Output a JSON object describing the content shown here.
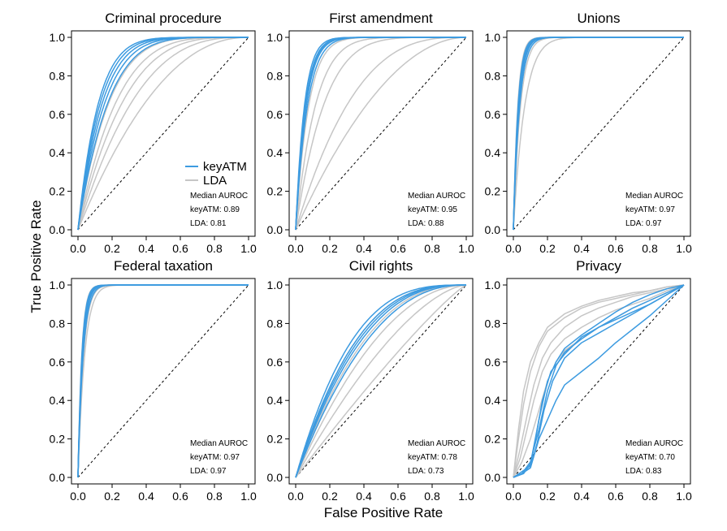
{
  "figure": {
    "xlabel": "False Positive Rate",
    "ylabel": "True Positive Rate"
  },
  "legend": {
    "entries": [
      {
        "label": "keyATM",
        "color": "#3d9be0"
      },
      {
        "label": "LDA",
        "color": "#c6c6c6"
      }
    ]
  },
  "colors": {
    "keyatm": "#3d9be0",
    "lda": "#c6c6c6",
    "diagonal": "#000000"
  },
  "chart_data": [
    {
      "type": "line",
      "title": "Criminal procedure",
      "xlim": [
        0,
        1
      ],
      "ylim": [
        0,
        1
      ],
      "ticks": [
        "0.0",
        "0.2",
        "0.4",
        "0.6",
        "0.8",
        "1.0"
      ],
      "note_title": "Median AUROC",
      "keyatm_auroc": "keyATM: 0.89",
      "lda_auroc": "LDA: 0.81",
      "keyatm_shape": 7,
      "lda_shape": 3.6,
      "keyatm_spread": [
        0.8,
        0.9,
        1.0,
        1.1,
        1.2
      ],
      "lda_spread": [
        0.6,
        0.8,
        1.0,
        1.2,
        1.5
      ]
    },
    {
      "type": "line",
      "title": "First amendment",
      "xlim": [
        0,
        1
      ],
      "ylim": [
        0,
        1
      ],
      "ticks": [
        "0.0",
        "0.2",
        "0.4",
        "0.6",
        "0.8",
        "1.0"
      ],
      "note_title": "Median AUROC",
      "keyatm_auroc": "keyATM: 0.95",
      "lda_auroc": "LDA: 0.88",
      "keyatm_shape": 17,
      "lda_shape": 6.5,
      "keyatm_spread": [
        0.85,
        0.95,
        1.0,
        1.05,
        1.15
      ],
      "lda_spread": [
        0.3,
        0.45,
        0.9,
        1.3,
        2.0
      ]
    },
    {
      "type": "line",
      "title": "Unions",
      "xlim": [
        0,
        1
      ],
      "ylim": [
        0,
        1
      ],
      "ticks": [
        "0.0",
        "0.2",
        "0.4",
        "0.6",
        "0.8",
        "1.0"
      ],
      "note_title": "Median AUROC",
      "keyatm_auroc": "keyATM: 0.97",
      "lda_auroc": "LDA: 0.97",
      "keyatm_shape": 32,
      "lda_shape": 30,
      "keyatm_spread": [
        0.85,
        0.95,
        1.0,
        1.05,
        1.15
      ],
      "lda_spread": [
        0.5,
        0.8,
        1.0,
        1.2,
        1.3
      ]
    },
    {
      "type": "line",
      "title": "Federal taxation",
      "xlim": [
        0,
        1
      ],
      "ylim": [
        0,
        1
      ],
      "ticks": [
        "0.0",
        "0.2",
        "0.4",
        "0.6",
        "0.8",
        "1.0"
      ],
      "note_title": "Median AUROC",
      "keyatm_auroc": "keyATM: 0.97",
      "lda_auroc": "LDA: 0.97",
      "keyatm_shape": 38,
      "lda_shape": 36,
      "keyatm_spread": [
        0.85,
        0.95,
        1.0,
        1.05,
        1.15
      ],
      "lda_spread": [
        0.7,
        0.85,
        1.0,
        1.1,
        1.25
      ]
    },
    {
      "type": "line",
      "title": "Civil rights",
      "xlim": [
        0,
        1
      ],
      "ylim": [
        0,
        1
      ],
      "ticks": [
        "0.0",
        "0.2",
        "0.4",
        "0.6",
        "0.8",
        "1.0"
      ],
      "note_title": "Median AUROC",
      "keyatm_auroc": "keyATM: 0.78",
      "lda_auroc": "LDA: 0.73",
      "keyatm_shape": 2.7,
      "lda_shape": 2.1,
      "keyatm_spread": [
        0.85,
        0.95,
        1.0,
        1.05,
        1.15
      ],
      "lda_spread": [
        0.55,
        0.75,
        0.95,
        1.15,
        1.35
      ]
    },
    {
      "type": "line",
      "title": "Privacy",
      "xlim": [
        0,
        1
      ],
      "ylim": [
        0,
        1
      ],
      "ticks": [
        "0.0",
        "0.2",
        "0.4",
        "0.6",
        "0.8",
        "1.0"
      ],
      "note_title": "Median AUROC",
      "keyatm_auroc": "keyATM: 0.70",
      "lda_auroc": "LDA: 0.83",
      "keyatm_curves": [
        [
          [
            0,
            0
          ],
          [
            0.05,
            0.02
          ],
          [
            0.1,
            0.05
          ],
          [
            0.14,
            0.18
          ],
          [
            0.18,
            0.35
          ],
          [
            0.23,
            0.5
          ],
          [
            0.3,
            0.62
          ],
          [
            0.4,
            0.7
          ],
          [
            0.5,
            0.75
          ],
          [
            0.6,
            0.8
          ],
          [
            0.7,
            0.85
          ],
          [
            0.8,
            0.9
          ],
          [
            0.9,
            0.95
          ],
          [
            1,
            1
          ]
        ],
        [
          [
            0,
            0
          ],
          [
            0.05,
            0.02
          ],
          [
            0.1,
            0.08
          ],
          [
            0.15,
            0.25
          ],
          [
            0.2,
            0.45
          ],
          [
            0.25,
            0.58
          ],
          [
            0.3,
            0.65
          ],
          [
            0.4,
            0.72
          ],
          [
            0.5,
            0.78
          ],
          [
            0.6,
            0.83
          ],
          [
            0.7,
            0.88
          ],
          [
            0.8,
            0.92
          ],
          [
            0.9,
            0.96
          ],
          [
            1,
            1
          ]
        ],
        [
          [
            0,
            0
          ],
          [
            0.05,
            0.03
          ],
          [
            0.1,
            0.06
          ],
          [
            0.13,
            0.2
          ],
          [
            0.17,
            0.4
          ],
          [
            0.22,
            0.55
          ],
          [
            0.3,
            0.64
          ],
          [
            0.4,
            0.73
          ],
          [
            0.5,
            0.78
          ],
          [
            0.6,
            0.82
          ],
          [
            0.7,
            0.86
          ],
          [
            0.8,
            0.9
          ],
          [
            0.9,
            0.95
          ],
          [
            1,
            1
          ]
        ],
        [
          [
            0,
            0
          ],
          [
            0.05,
            0.02
          ],
          [
            0.1,
            0.05
          ],
          [
            0.15,
            0.2
          ],
          [
            0.2,
            0.3
          ],
          [
            0.25,
            0.4
          ],
          [
            0.3,
            0.48
          ],
          [
            0.4,
            0.55
          ],
          [
            0.5,
            0.62
          ],
          [
            0.6,
            0.7
          ],
          [
            0.7,
            0.77
          ],
          [
            0.8,
            0.84
          ],
          [
            0.9,
            0.92
          ],
          [
            1,
            1
          ]
        ],
        [
          [
            0,
            0
          ],
          [
            0.06,
            0.02
          ],
          [
            0.1,
            0.07
          ],
          [
            0.15,
            0.3
          ],
          [
            0.2,
            0.5
          ],
          [
            0.25,
            0.6
          ],
          [
            0.3,
            0.67
          ],
          [
            0.4,
            0.74
          ],
          [
            0.5,
            0.8
          ],
          [
            0.6,
            0.86
          ],
          [
            0.7,
            0.91
          ],
          [
            0.8,
            0.95
          ],
          [
            0.9,
            0.98
          ],
          [
            1,
            1
          ]
        ]
      ],
      "lda_curves": [
        [
          [
            0,
            0
          ],
          [
            0.03,
            0.2
          ],
          [
            0.06,
            0.38
          ],
          [
            0.1,
            0.55
          ],
          [
            0.15,
            0.68
          ],
          [
            0.2,
            0.76
          ],
          [
            0.3,
            0.83
          ],
          [
            0.4,
            0.88
          ],
          [
            0.5,
            0.91
          ],
          [
            0.6,
            0.93
          ],
          [
            0.7,
            0.95
          ],
          [
            0.8,
            0.97
          ],
          [
            0.9,
            0.99
          ],
          [
            1,
            1
          ]
        ],
        [
          [
            0,
            0
          ],
          [
            0.04,
            0.15
          ],
          [
            0.08,
            0.32
          ],
          [
            0.12,
            0.48
          ],
          [
            0.17,
            0.62
          ],
          [
            0.22,
            0.7
          ],
          [
            0.3,
            0.78
          ],
          [
            0.4,
            0.84
          ],
          [
            0.5,
            0.88
          ],
          [
            0.6,
            0.91
          ],
          [
            0.7,
            0.94
          ],
          [
            0.8,
            0.96
          ],
          [
            0.9,
            0.98
          ],
          [
            1,
            1
          ]
        ],
        [
          [
            0,
            0
          ],
          [
            0.04,
            0.1
          ],
          [
            0.08,
            0.25
          ],
          [
            0.12,
            0.4
          ],
          [
            0.17,
            0.55
          ],
          [
            0.22,
            0.64
          ],
          [
            0.3,
            0.72
          ],
          [
            0.4,
            0.78
          ],
          [
            0.5,
            0.83
          ],
          [
            0.6,
            0.87
          ],
          [
            0.7,
            0.9
          ],
          [
            0.8,
            0.93
          ],
          [
            0.9,
            0.97
          ],
          [
            1,
            1
          ]
        ],
        [
          [
            0,
            0
          ],
          [
            0.05,
            0.08
          ],
          [
            0.1,
            0.2
          ],
          [
            0.15,
            0.35
          ],
          [
            0.2,
            0.5
          ],
          [
            0.25,
            0.6
          ],
          [
            0.3,
            0.66
          ],
          [
            0.4,
            0.72
          ],
          [
            0.5,
            0.78
          ],
          [
            0.6,
            0.83
          ],
          [
            0.7,
            0.88
          ],
          [
            0.8,
            0.92
          ],
          [
            0.9,
            0.96
          ],
          [
            1,
            1
          ]
        ],
        [
          [
            0,
            0
          ],
          [
            0.03,
            0.25
          ],
          [
            0.06,
            0.45
          ],
          [
            0.1,
            0.6
          ],
          [
            0.15,
            0.7
          ],
          [
            0.2,
            0.78
          ],
          [
            0.3,
            0.85
          ],
          [
            0.4,
            0.89
          ],
          [
            0.5,
            0.92
          ],
          [
            0.6,
            0.94
          ],
          [
            0.7,
            0.96
          ],
          [
            0.8,
            0.97
          ],
          [
            0.9,
            0.99
          ],
          [
            1,
            1
          ]
        ]
      ]
    }
  ]
}
